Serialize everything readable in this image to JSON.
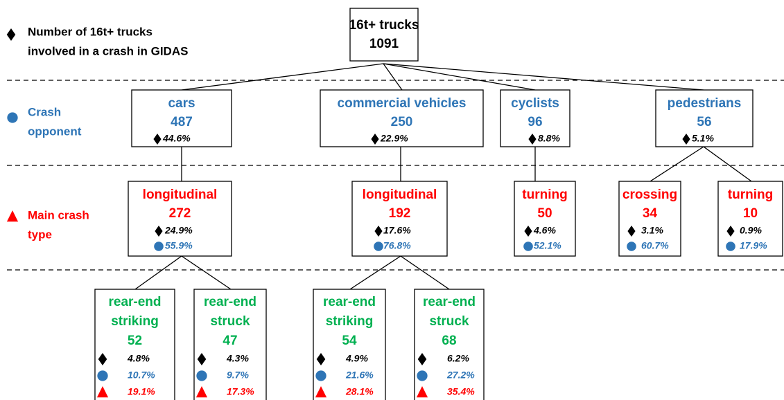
{
  "legend": [
    {
      "lines": [
        "Number of 16t+ trucks",
        "involved in a crash in GIDAS"
      ]
    },
    {
      "lines": [
        "Crash",
        "opponent"
      ]
    },
    {
      "lines": [
        "Main crash",
        "type"
      ]
    }
  ],
  "root": {
    "label": "16t+ trucks",
    "count": 1091
  },
  "opponents": [
    {
      "label": "cars",
      "count": 487,
      "share_trucks": "44.6%"
    },
    {
      "label": "commercial vehicles",
      "count": 250,
      "share_trucks": "22.9%"
    },
    {
      "label": "cyclists",
      "count": 96,
      "share_trucks": "8.8%"
    },
    {
      "label": "pedestrians",
      "count": 56,
      "share_trucks": "5.1%"
    }
  ],
  "crash_types": [
    {
      "label": "longitudinal",
      "count": 272,
      "share_trucks": "24.9%",
      "share_opponent": "55.9%"
    },
    {
      "label": "longitudinal",
      "count": 192,
      "share_trucks": "17.6%",
      "share_opponent": "76.8%"
    },
    {
      "label": "turning",
      "count": 50,
      "share_trucks": "4.6%",
      "share_opponent": "52.1%"
    },
    {
      "label": "crossing",
      "count": 34,
      "share_trucks": "3.1%",
      "share_opponent": "60.7%"
    },
    {
      "label": "turning",
      "count": 10,
      "share_trucks": "0.9%",
      "share_opponent": "17.9%"
    }
  ],
  "sub_types": [
    {
      "lines": [
        "rear-end",
        "striking"
      ],
      "count": 52,
      "share_trucks": "4.8%",
      "share_opponent": "10.7%",
      "share_type": "19.1%"
    },
    {
      "lines": [
        "rear-end",
        "struck"
      ],
      "count": 47,
      "share_trucks": "4.3%",
      "share_opponent": "9.7%",
      "share_type": "17.3%"
    },
    {
      "lines": [
        "rear-end",
        "striking"
      ],
      "count": 54,
      "share_trucks": "4.9%",
      "share_opponent": "21.6%",
      "share_type": "28.1%"
    },
    {
      "lines": [
        "rear-end",
        "struck"
      ],
      "count": 68,
      "share_trucks": "6.2%",
      "share_opponent": "27.2%",
      "share_type": "35.4%"
    }
  ]
}
